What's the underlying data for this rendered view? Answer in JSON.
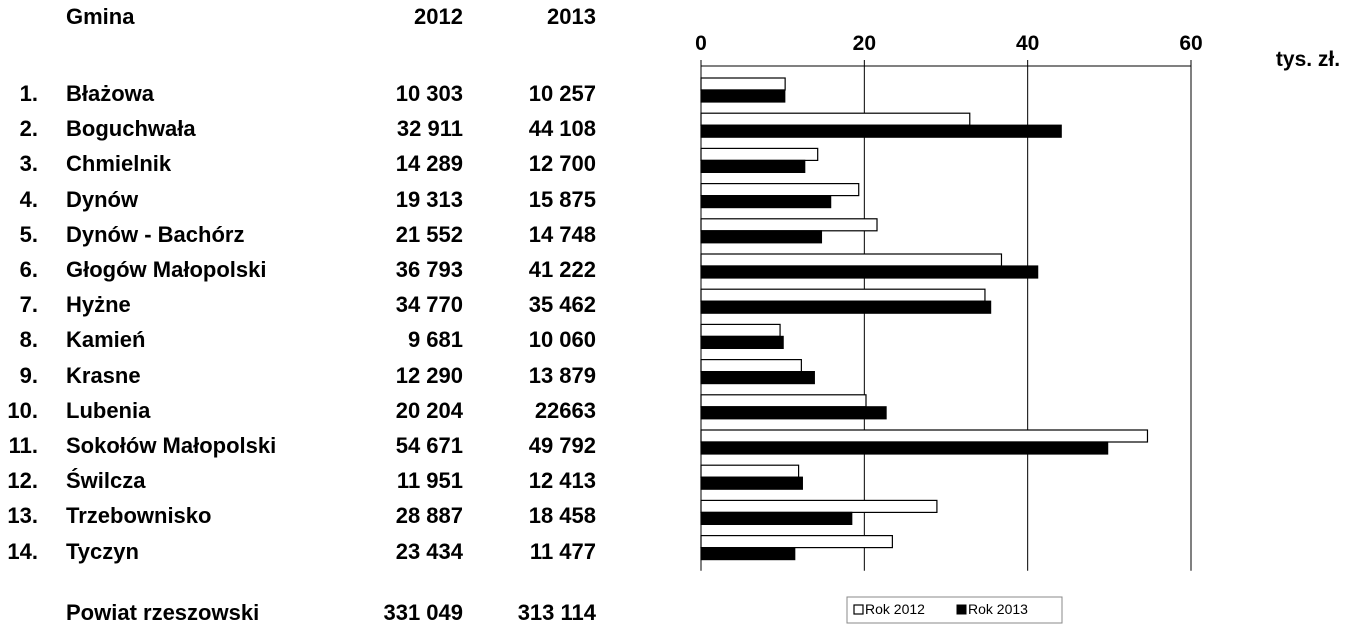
{
  "table": {
    "header": {
      "name": "Gmina",
      "y2012": "2012",
      "y2013": "2013"
    },
    "rows": [
      {
        "no": "1.",
        "name": "Błażowa",
        "v2012": "10 303",
        "v2013": "10 257"
      },
      {
        "no": "2.",
        "name": "Boguchwała",
        "v2012": "32 911",
        "v2013": "44 108"
      },
      {
        "no": "3.",
        "name": "Chmielnik",
        "v2012": "14 289",
        "v2013": "12 700"
      },
      {
        "no": "4.",
        "name": "Dynów",
        "v2012": "19 313",
        "v2013": "15 875"
      },
      {
        "no": "5.",
        "name": "Dynów - Bachórz",
        "v2012": "21 552",
        "v2013": "14 748"
      },
      {
        "no": "6.",
        "name": "Głogów Małopolski",
        "v2012": "36 793",
        "v2013": "41 222"
      },
      {
        "no": "7.",
        "name": "Hyżne",
        "v2012": "34 770",
        "v2013": "35 462"
      },
      {
        "no": "8.",
        "name": "Kamień",
        "v2012": "9 681",
        "v2013": "10 060"
      },
      {
        "no": "9.",
        "name": "Krasne",
        "v2012": "12 290",
        "v2013": "13 879"
      },
      {
        "no": "10.",
        "name": "Lubenia",
        "v2012": "20 204",
        "v2013": "22663"
      },
      {
        "no": "11.",
        "name": "Sokołów Małopolski",
        "v2012": "54 671",
        "v2013": "49 792"
      },
      {
        "no": "12.",
        "name": "Świlcza",
        "v2012": "11 951",
        "v2013": "12 413"
      },
      {
        "no": "13.",
        "name": "Trzebownisko",
        "v2012": "28 887",
        "v2013": "18 458"
      },
      {
        "no": "14.",
        "name": "Tyczyn",
        "v2012": "23 434",
        "v2013": "11 477"
      }
    ],
    "total": {
      "name": "Powiat rzeszowski",
      "v2012": "331 049",
      "v2013": "313 114"
    }
  },
  "chart_data": {
    "type": "bar",
    "orientation": "horizontal",
    "categories": [
      "Błażowa",
      "Boguchwała",
      "Chmielnik",
      "Dynów",
      "Dynów - Bachórz",
      "Głogów Małopolski",
      "Hyżne",
      "Kamień",
      "Krasne",
      "Lubenia",
      "Sokołów Małopolski",
      "Świlcza",
      "Trzebownisko",
      "Tyczyn"
    ],
    "series": [
      {
        "name": "Rok 2012",
        "color": "#ffffff",
        "values": [
          10.303,
          32.911,
          14.289,
          19.313,
          21.552,
          36.793,
          34.77,
          9.681,
          12.29,
          20.204,
          54.671,
          11.951,
          28.887,
          23.434
        ]
      },
      {
        "name": "Rok 2013",
        "color": "#000000",
        "values": [
          10.257,
          44.108,
          12.7,
          15.875,
          14.748,
          41.222,
          35.462,
          10.06,
          13.879,
          22.663,
          49.792,
          12.413,
          18.458,
          11.477
        ]
      }
    ],
    "xlim": [
      0,
      60
    ],
    "xticks": [
      0,
      20,
      40,
      60
    ],
    "xtick_labels": [
      "0",
      "20",
      "40",
      "60"
    ],
    "xlabel": "tys. zł.",
    "grid": true,
    "legend_position": "bottom"
  }
}
